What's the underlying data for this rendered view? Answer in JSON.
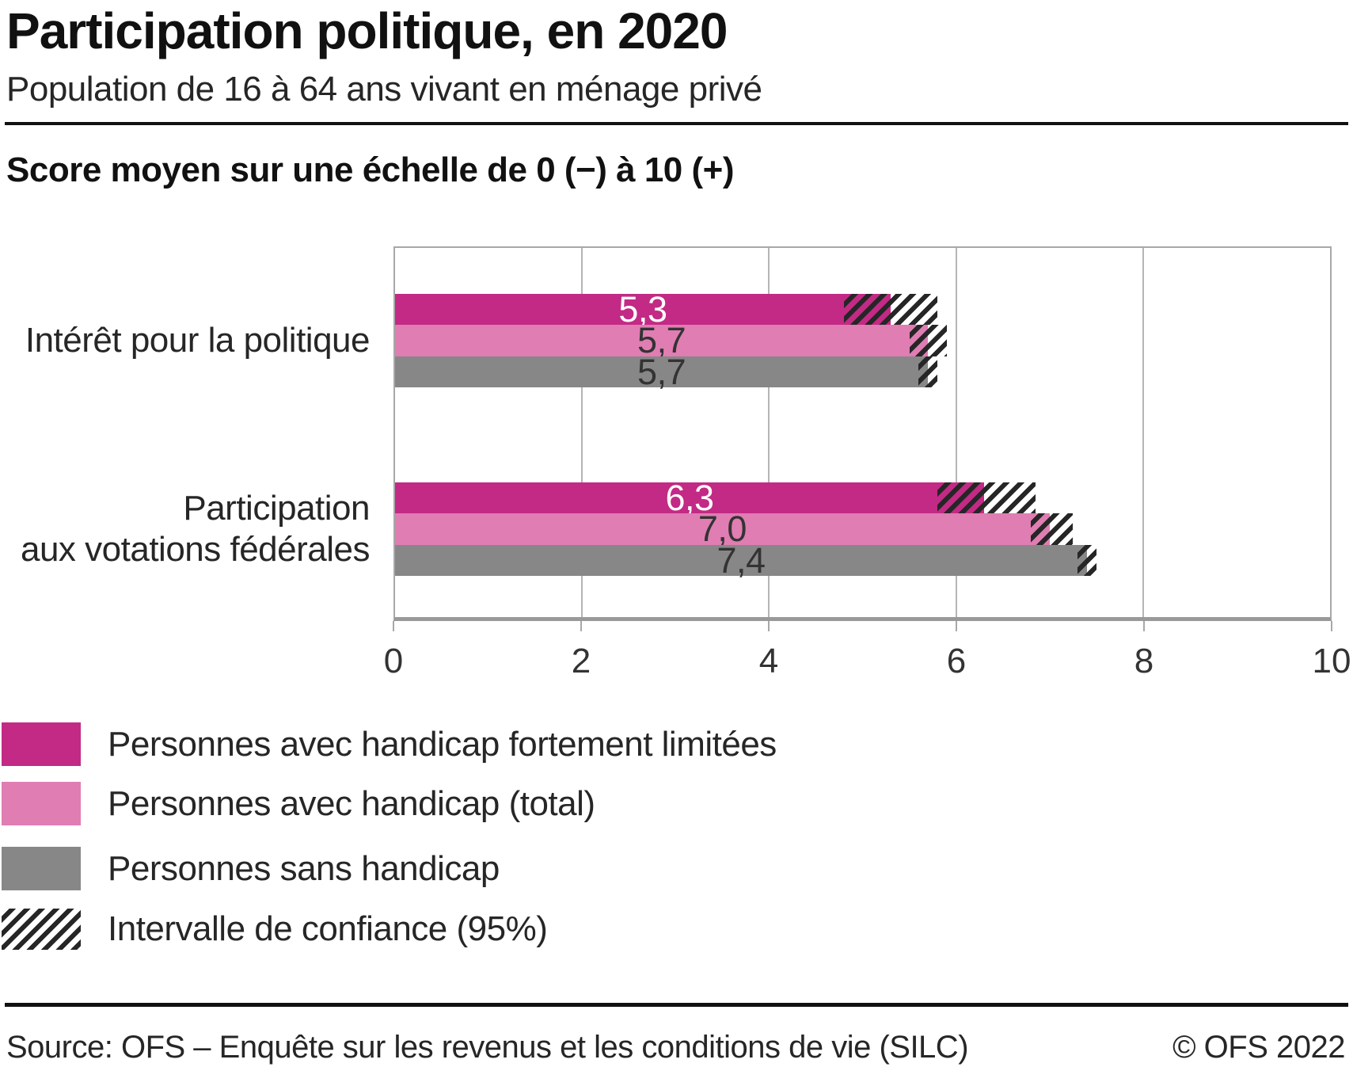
{
  "header": {
    "title": "Participation politique, en 2020",
    "subtitle": "Population de 16 à 64 ans vivant en ménage privé"
  },
  "chart_data": {
    "type": "bar",
    "orientation": "horizontal",
    "scale_label": "Score moyen sur une échelle de 0 (−) à 10 (+)",
    "categories": [
      "Intérêt pour la politique",
      "Participation\naux votations fédérales"
    ],
    "series": [
      {
        "name": "Personnes avec handicap fortement limitées",
        "color": "#c22a85",
        "label_color": "#ffffff",
        "values": [
          5.3,
          6.3
        ],
        "value_labels": [
          "5,3",
          "6,3"
        ],
        "ci": [
          [
            4.8,
            5.8
          ],
          [
            5.8,
            6.85
          ]
        ]
      },
      {
        "name": "Personnes avec handicap (total)",
        "color": "#e07db3",
        "label_color": "#333333",
        "values": [
          5.7,
          7.0
        ],
        "value_labels": [
          "5,7",
          "7,0"
        ],
        "ci": [
          [
            5.5,
            5.9
          ],
          [
            6.8,
            7.25
          ]
        ]
      },
      {
        "name": "Personnes sans handicap",
        "color": "#878787",
        "label_color": "#333333",
        "values": [
          5.7,
          7.4
        ],
        "value_labels": [
          "5,7",
          "7,4"
        ],
        "ci": [
          [
            5.6,
            5.8
          ],
          [
            7.3,
            7.5
          ]
        ]
      }
    ],
    "ci_legend_label": "Intervalle de confiance (95%)",
    "xlim": [
      0,
      10
    ],
    "xticks": [
      0,
      2,
      4,
      6,
      8,
      10
    ],
    "grid": true,
    "legend_position": "bottom-left"
  },
  "colors": {
    "hatch": "#262626",
    "grid": "#b5b5b5",
    "plot_border": "#a8a8a8",
    "axis_line": "#999999",
    "rule": "#111111"
  },
  "footer": {
    "source": "Source: OFS – Enquête sur les revenus et les conditions de vie (SILC)",
    "copyright": "© OFS 2022"
  }
}
